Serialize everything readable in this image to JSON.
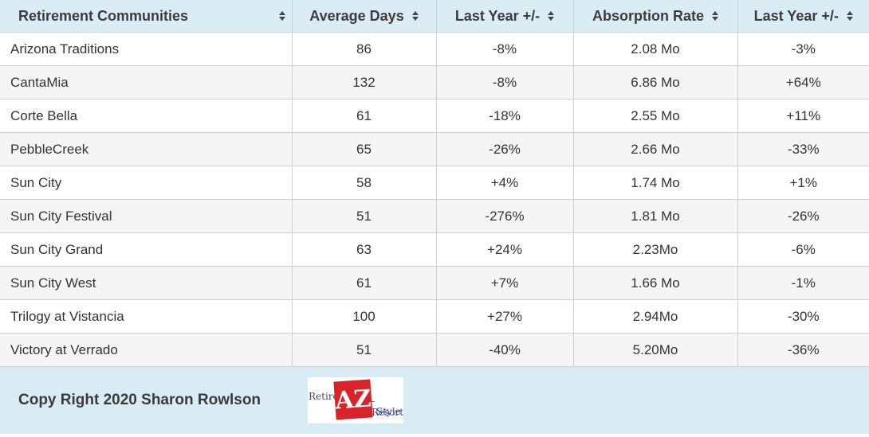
{
  "table": {
    "headers": [
      {
        "label": "Retirement Communities",
        "sort_icon": "sort-icon"
      },
      {
        "label": "Average Days",
        "sort_icon": "sort-icon"
      },
      {
        "label": "Last Year +/-",
        "sort_icon": "sort-icon"
      },
      {
        "label": "Absorption Rate",
        "sort_icon": "sort-icon"
      },
      {
        "label": "Last Year +/-",
        "sort_icon": "sort-icon"
      }
    ],
    "rows": [
      [
        "Arizona Traditions",
        "86",
        "-8%",
        "2.08 Mo",
        "-3%"
      ],
      [
        "CantaMia",
        "132",
        "-8%",
        "6.86 Mo",
        "+64%"
      ],
      [
        "Corte Bella",
        "61",
        "-18%",
        "2.55 Mo",
        "+11%"
      ],
      [
        "PebbleCreek",
        "65",
        "-26%",
        "2.66 Mo",
        "-33%"
      ],
      [
        "Sun City",
        "58",
        "+4%",
        "1.74 Mo",
        "+1%"
      ],
      [
        "Sun City Festival",
        "51",
        "-276%",
        "1.81 Mo",
        "-26%"
      ],
      [
        "Sun City Grand",
        "63",
        "+24%",
        "2.23Mo",
        "-6%"
      ],
      [
        "Sun City West",
        "61",
        "+7%",
        "1.66 Mo",
        "-1%"
      ],
      [
        "Trilogy at Vistancia",
        "100",
        "+27%",
        "2.94Mo",
        "-30%"
      ],
      [
        "Victory at Verrado",
        "51",
        "-40%",
        "5.20Mo",
        "-36%"
      ]
    ]
  },
  "footer": {
    "copyright": "Copy Right 2020 Sharon Rowlson",
    "logo": {
      "retire": "Retire",
      "az": "AZ",
      "resort": "-Resort",
      "style": "Style"
    }
  },
  "colors": {
    "header_bg": "#dcecf4",
    "footer_bg": "#d9ecf5",
    "logo_red": "#d8232a"
  }
}
